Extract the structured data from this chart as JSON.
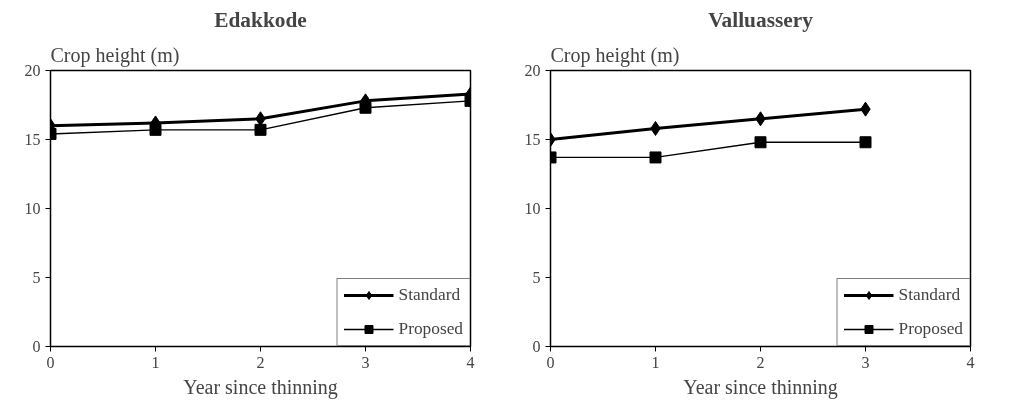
{
  "chart_data": [
    {
      "type": "line",
      "title": "Edakkode",
      "xlabel": "Year since thinning",
      "ylabel": "Crop height (m)",
      "x": [
        0,
        1,
        2,
        3,
        4
      ],
      "xlim": [
        0,
        4
      ],
      "xticks": [
        0,
        1,
        2,
        3,
        4
      ],
      "ylim": [
        0,
        20
      ],
      "yticks": [
        0,
        5,
        10,
        15,
        20
      ],
      "grid": false,
      "legend": "bottom right",
      "series": [
        {
          "name": "Standard",
          "color": "#000000",
          "marker": "diamond",
          "values": [
            16.0,
            16.2,
            16.5,
            17.8,
            18.3
          ]
        },
        {
          "name": "Proposed",
          "color": "#000000",
          "marker": "square",
          "values": [
            15.4,
            15.7,
            15.7,
            17.3,
            17.8
          ]
        }
      ]
    },
    {
      "type": "line",
      "title": "Valluassery",
      "xlabel": "Year since thinning",
      "ylabel": "Crop height (m)",
      "x": [
        0,
        1,
        2,
        3
      ],
      "xlim": [
        0,
        4
      ],
      "xticks": [
        0,
        1,
        2,
        3,
        4
      ],
      "ylim": [
        0,
        20
      ],
      "yticks": [
        0,
        5,
        10,
        15,
        20
      ],
      "grid": false,
      "legend": "bottom right",
      "series": [
        {
          "name": "Standard",
          "color": "#000000",
          "marker": "diamond",
          "values": [
            15.0,
            15.8,
            16.5,
            17.2
          ]
        },
        {
          "name": "Proposed",
          "color": "#000000",
          "marker": "square",
          "values": [
            13.7,
            13.7,
            14.8,
            14.8
          ]
        }
      ]
    }
  ]
}
